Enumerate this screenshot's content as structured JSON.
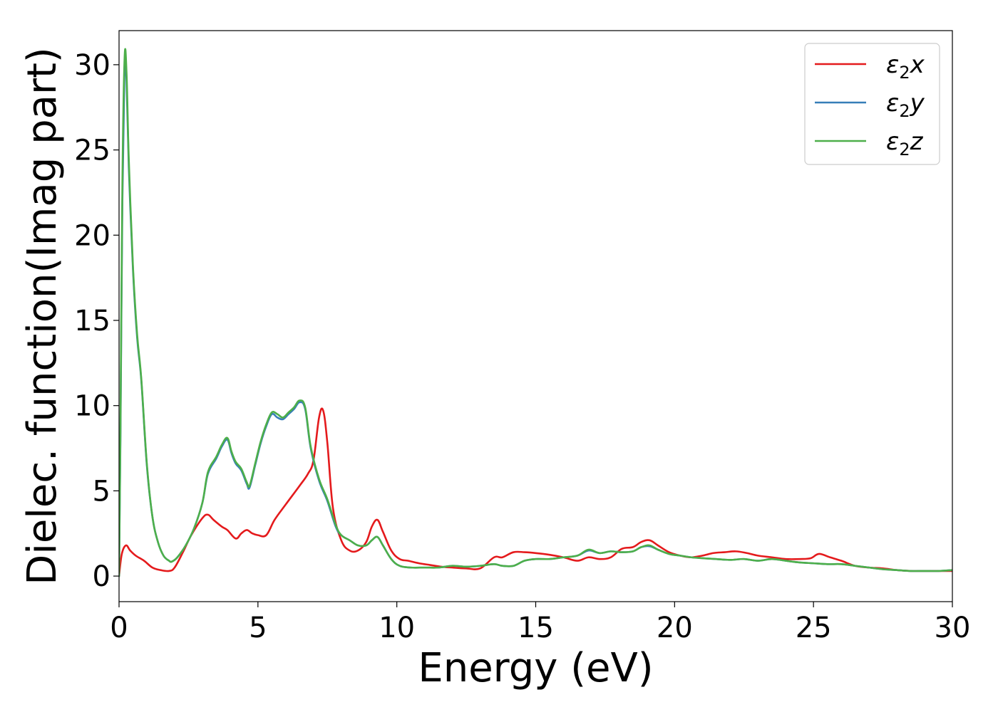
{
  "chart_data": {
    "type": "line",
    "title": "",
    "xlabel": "Energy (eV)",
    "ylabel": "Dielec. function(Imag part)",
    "xlim": [
      0,
      30
    ],
    "ylim": [
      -1.5,
      32
    ],
    "xticks": [
      0,
      5,
      10,
      15,
      20,
      25,
      30
    ],
    "yticks": [
      0,
      5,
      10,
      15,
      20,
      25,
      30
    ],
    "grid": false,
    "legend_position": "top-right",
    "series": [
      {
        "name": "ε2x",
        "legend_base": "ε",
        "legend_sub": "2",
        "legend_suffix": "x",
        "color": "#e41a1c",
        "x": [
          0,
          0.1,
          0.25,
          0.4,
          0.6,
          0.9,
          1.2,
          1.5,
          1.8,
          2.0,
          2.3,
          2.6,
          3.0,
          3.2,
          3.4,
          3.7,
          3.9,
          4.2,
          4.4,
          4.6,
          4.8,
          5.0,
          5.3,
          5.6,
          6.0,
          6.5,
          6.8,
          7.0,
          7.2,
          7.35,
          7.5,
          7.7,
          8.0,
          8.3,
          8.6,
          8.9,
          9.1,
          9.3,
          9.5,
          9.8,
          10.1,
          10.4,
          10.8,
          11.2,
          11.6,
          12.0,
          12.5,
          13.0,
          13.5,
          13.8,
          14.2,
          14.6,
          15.0,
          15.5,
          16.0,
          16.5,
          16.9,
          17.3,
          17.7,
          18.1,
          18.5,
          18.8,
          19.1,
          19.4,
          19.8,
          20.2,
          20.6,
          21.0,
          21.4,
          21.8,
          22.2,
          22.6,
          23.0,
          23.5,
          24.0,
          24.5,
          24.9,
          25.2,
          25.6,
          26.0,
          26.5,
          27.0,
          27.5,
          28.0,
          28.5,
          29.0,
          29.5,
          30.0
        ],
        "y": [
          0.0,
          1.3,
          1.8,
          1.5,
          1.2,
          0.9,
          0.5,
          0.35,
          0.3,
          0.5,
          1.4,
          2.4,
          3.4,
          3.6,
          3.3,
          2.9,
          2.7,
          2.2,
          2.5,
          2.7,
          2.5,
          2.4,
          2.4,
          3.3,
          4.2,
          5.3,
          6.0,
          6.8,
          9.3,
          9.7,
          7.8,
          4.0,
          2.1,
          1.5,
          1.5,
          2.0,
          2.9,
          3.3,
          2.6,
          1.5,
          1.0,
          0.9,
          0.75,
          0.65,
          0.55,
          0.5,
          0.45,
          0.45,
          1.1,
          1.1,
          1.4,
          1.4,
          1.35,
          1.25,
          1.1,
          0.9,
          1.1,
          1.0,
          1.1,
          1.6,
          1.7,
          2.0,
          2.1,
          1.8,
          1.4,
          1.2,
          1.1,
          1.2,
          1.35,
          1.4,
          1.45,
          1.35,
          1.2,
          1.1,
          1.0,
          1.0,
          1.05,
          1.3,
          1.1,
          0.9,
          0.6,
          0.5,
          0.45,
          0.35,
          0.3,
          0.3,
          0.3,
          0.3
        ]
      },
      {
        "name": "ε2y",
        "legend_base": "ε",
        "legend_sub": "2",
        "legend_suffix": "y",
        "color": "#377eb8",
        "x": [
          0,
          0.05,
          0.12,
          0.2,
          0.27,
          0.35,
          0.5,
          0.65,
          0.8,
          1.0,
          1.2,
          1.4,
          1.6,
          1.8,
          1.9,
          2.1,
          2.4,
          2.7,
          3.0,
          3.2,
          3.5,
          3.7,
          3.9,
          4.05,
          4.2,
          4.4,
          4.6,
          4.7,
          4.9,
          5.1,
          5.3,
          5.5,
          5.7,
          5.9,
          6.1,
          6.3,
          6.5,
          6.7,
          6.9,
          7.2,
          7.5,
          7.8,
          8.0,
          8.3,
          8.6,
          8.9,
          9.1,
          9.3,
          9.5,
          9.8,
          10.1,
          10.5,
          11.0,
          11.5,
          12.0,
          12.5,
          13.0,
          13.5,
          13.8,
          14.2,
          14.6,
          15.0,
          15.5,
          16.0,
          16.5,
          16.9,
          17.3,
          17.7,
          18.1,
          18.5,
          18.8,
          19.1,
          19.4,
          19.8,
          20.2,
          20.6,
          21.0,
          21.5,
          22.0,
          22.5,
          23.0,
          23.5,
          24.0,
          24.5,
          25.0,
          25.5,
          26.0,
          26.5,
          27.0,
          27.5,
          28.0,
          28.5,
          29.0,
          29.5,
          30.0
        ],
        "y": [
          0.0,
          8.0,
          22.0,
          30.0,
          29.0,
          24.0,
          18.0,
          14.0,
          11.5,
          6.5,
          3.5,
          2.0,
          1.2,
          0.9,
          0.85,
          1.1,
          1.8,
          2.8,
          4.3,
          6.0,
          6.9,
          7.6,
          8.0,
          7.2,
          6.6,
          6.2,
          5.4,
          5.2,
          6.5,
          7.8,
          8.8,
          9.5,
          9.3,
          9.2,
          9.5,
          9.8,
          10.2,
          9.8,
          7.5,
          5.6,
          4.4,
          2.9,
          2.4,
          2.1,
          1.8,
          1.8,
          2.1,
          2.3,
          1.8,
          1.0,
          0.6,
          0.5,
          0.5,
          0.5,
          0.6,
          0.55,
          0.6,
          0.7,
          0.6,
          0.6,
          0.9,
          1.0,
          1.0,
          1.1,
          1.2,
          1.5,
          1.35,
          1.45,
          1.4,
          1.45,
          1.7,
          1.75,
          1.55,
          1.3,
          1.2,
          1.1,
          1.05,
          1.0,
          0.95,
          1.0,
          0.9,
          1.0,
          0.9,
          0.8,
          0.75,
          0.7,
          0.7,
          0.6,
          0.5,
          0.4,
          0.35,
          0.3,
          0.3,
          0.3,
          0.35
        ]
      },
      {
        "name": "ε2z",
        "legend_base": "ε",
        "legend_sub": "2",
        "legend_suffix": "z",
        "color": "#4daf4a",
        "x": [
          0,
          0.05,
          0.12,
          0.2,
          0.27,
          0.35,
          0.5,
          0.65,
          0.8,
          1.0,
          1.2,
          1.4,
          1.6,
          1.8,
          1.9,
          2.1,
          2.4,
          2.7,
          3.0,
          3.2,
          3.5,
          3.7,
          3.9,
          4.05,
          4.2,
          4.4,
          4.6,
          4.7,
          4.9,
          5.1,
          5.3,
          5.5,
          5.7,
          5.9,
          6.1,
          6.3,
          6.5,
          6.7,
          6.9,
          7.2,
          7.5,
          7.8,
          8.0,
          8.3,
          8.6,
          8.9,
          9.1,
          9.3,
          9.5,
          9.8,
          10.1,
          10.5,
          11.0,
          11.5,
          12.0,
          12.5,
          13.0,
          13.5,
          13.8,
          14.2,
          14.6,
          15.0,
          15.5,
          16.0,
          16.5,
          16.9,
          17.3,
          17.7,
          18.1,
          18.5,
          18.8,
          19.1,
          19.4,
          19.8,
          20.2,
          20.6,
          21.0,
          21.5,
          22.0,
          22.5,
          23.0,
          23.5,
          24.0,
          24.5,
          25.0,
          25.5,
          26.0,
          26.5,
          27.0,
          27.5,
          28.0,
          28.5,
          29.0,
          29.5,
          30.0
        ],
        "y": [
          0.0,
          8.5,
          23.0,
          30.4,
          29.5,
          24.5,
          18.2,
          14.2,
          11.6,
          6.6,
          3.5,
          2.0,
          1.2,
          0.9,
          0.85,
          1.1,
          1.8,
          2.8,
          4.3,
          6.1,
          7.0,
          7.7,
          8.1,
          7.3,
          6.7,
          6.3,
          5.5,
          5.3,
          6.6,
          7.9,
          8.9,
          9.6,
          9.5,
          9.3,
          9.6,
          9.9,
          10.3,
          9.9,
          7.6,
          5.7,
          4.5,
          3.0,
          2.4,
          2.1,
          1.8,
          1.8,
          2.1,
          2.3,
          1.8,
          1.0,
          0.6,
          0.5,
          0.5,
          0.5,
          0.6,
          0.55,
          0.6,
          0.7,
          0.6,
          0.6,
          0.9,
          1.0,
          1.0,
          1.1,
          1.2,
          1.55,
          1.35,
          1.45,
          1.4,
          1.45,
          1.7,
          1.8,
          1.55,
          1.3,
          1.2,
          1.1,
          1.05,
          1.0,
          0.95,
          1.0,
          0.9,
          1.0,
          0.9,
          0.8,
          0.75,
          0.7,
          0.7,
          0.6,
          0.5,
          0.4,
          0.35,
          0.3,
          0.3,
          0.3,
          0.35
        ]
      }
    ]
  }
}
